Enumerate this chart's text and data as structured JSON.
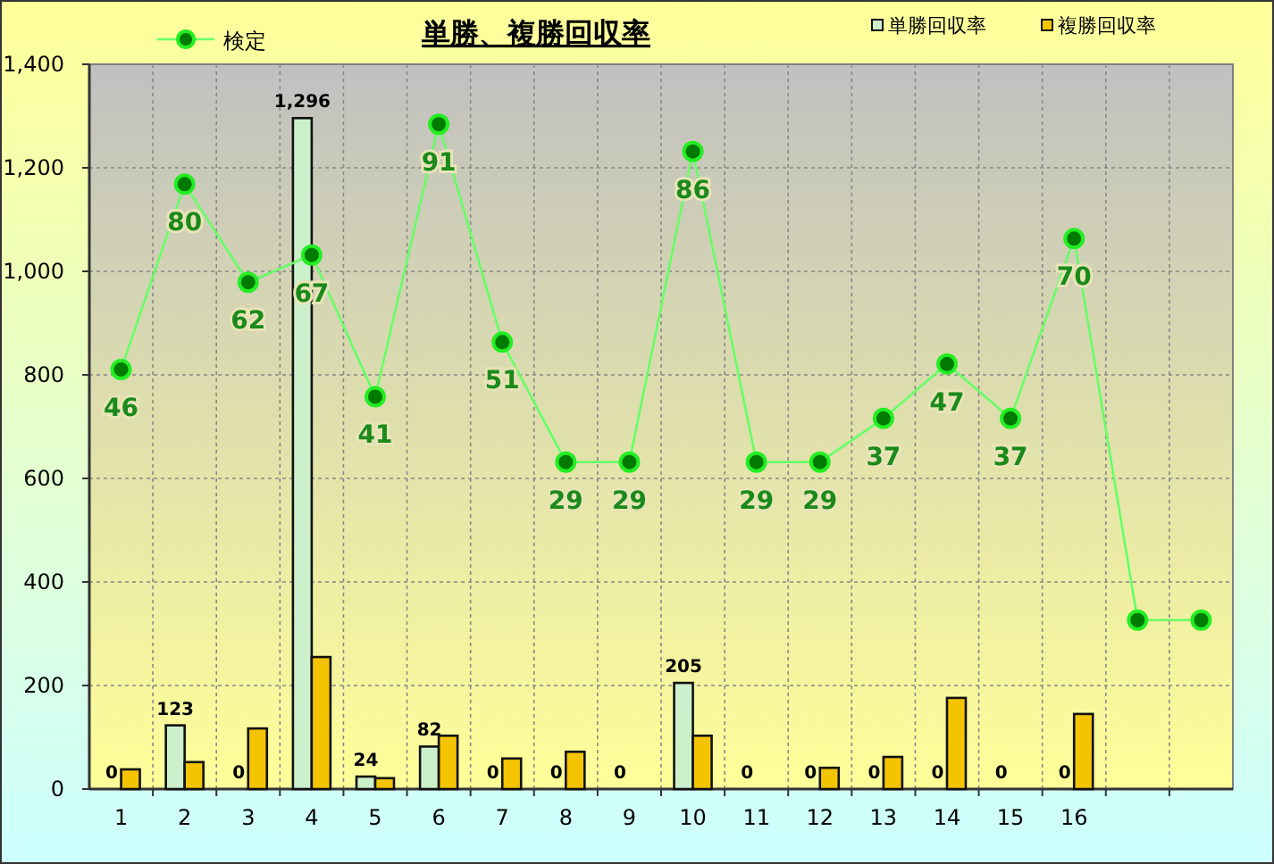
{
  "chart_data": {
    "type": "bar",
    "title": "単勝、複勝回収率",
    "categories": [
      "1",
      "2",
      "3",
      "4",
      "5",
      "6",
      "7",
      "8",
      "9",
      "10",
      "11",
      "12",
      "13",
      "14",
      "15",
      "16",
      null,
      null
    ],
    "ylim": [
      0,
      1400
    ],
    "yticks": [
      0,
      200,
      400,
      600,
      800,
      {
        "value": 1000,
        "label": "1,000"
      },
      {
        "value": 1200,
        "label": "1,200"
      },
      {
        "value": 1400,
        "label": "1,400"
      }
    ],
    "y2lim": [
      -31,
      102
    ],
    "grid": true,
    "legend": "top",
    "series": [
      {
        "name": "検定",
        "type": "line",
        "axis": "y2",
        "color": "#66ff66",
        "marker": "circle",
        "values": [
          46,
          80,
          62,
          67,
          41,
          91,
          51,
          29,
          29,
          86,
          29,
          29,
          37,
          47,
          37,
          70,
          0,
          0
        ],
        "value_labels": [
          "46",
          "80",
          "62",
          "67",
          "41",
          "91",
          "51",
          "29",
          "29",
          "86",
          "29",
          "29",
          "37",
          "47",
          "37",
          "70",
          null,
          null
        ]
      },
      {
        "name": "単勝回収率",
        "color": "#ccf0cc",
        "values": [
          0,
          123,
          0,
          1296,
          24,
          82,
          0,
          0,
          0,
          205,
          0,
          0,
          0,
          0,
          0,
          0,
          null,
          null
        ],
        "value_labels": [
          "0",
          "123",
          "0",
          "1,296",
          "24",
          "82",
          "0",
          "0",
          "0",
          "205",
          "0",
          "0",
          "0",
          "0",
          "0",
          "0",
          null,
          null
        ]
      },
      {
        "name": "複勝回収率",
        "color": "#f5c400",
        "values": [
          38,
          52,
          117,
          255,
          21,
          103,
          59,
          72,
          0,
          103,
          0,
          41,
          62,
          176,
          0,
          145,
          null,
          null
        ]
      }
    ]
  }
}
